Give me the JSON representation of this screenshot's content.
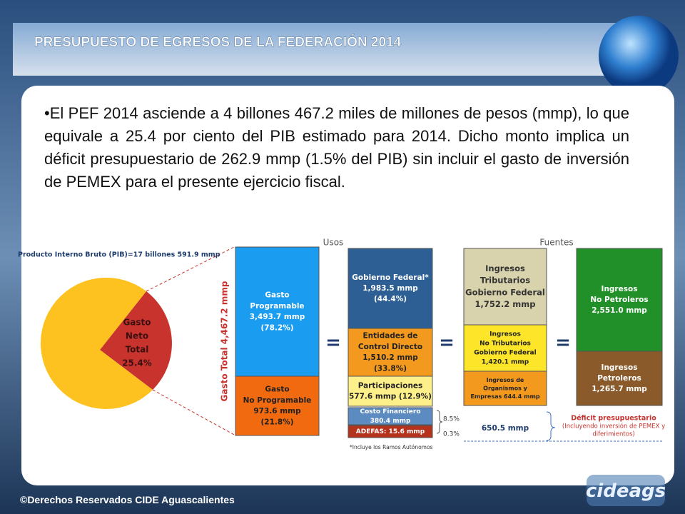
{
  "header": {
    "title": "PRESUPUESTO DE EGRESOS DE LA FEDERACIÓN 2014"
  },
  "body": {
    "paragraph": "•El PEF 2014 asciende a 4 billones 467.2 miles de millones de pesos (mmp), lo que equivale a 25.4 por ciento del PIB estimado para 2014. Dicho monto implica un déficit presupuestario de 262.9 mmp (1.5% del PIB) sin incluir el gasto de inversión de PEMEX para el presente ejercicio fiscal."
  },
  "infographic": {
    "pie_label": "Producto Interno Bruto (PIB)=17 billones 591.9 mmp",
    "pie_slice": [
      "Gasto",
      "Neto",
      "Total",
      "25.4%"
    ],
    "usos": "Usos",
    "fuentes": "Fuentes",
    "total_label": "Gasto Total 4,467.2 mmp",
    "boxes": [
      {
        "lines": [
          "Gasto",
          "Programable",
          "3,493.7 mmp",
          "(78.2%)"
        ]
      },
      {
        "lines": [
          "Gasto",
          "No Programable",
          "973.6 mmp",
          "(21.8%)"
        ]
      },
      {
        "lines": [
          "Gobierno Federal*",
          "1,983.5 mmp",
          "(44.4%)"
        ]
      },
      {
        "lines": [
          "Entidades de",
          "Control Directo",
          "1,510.2 mmp",
          "(33.8%)"
        ]
      },
      {
        "lines": [
          "Participaciones",
          "577.6 mmp (12.9%)"
        ]
      },
      {
        "lines": [
          "Costo Financiero",
          "380.4 mmp"
        ]
      },
      {
        "lines": [
          "ADEFAS: 15.6 mmp"
        ]
      },
      {
        "lines": [
          "Ingresos",
          "Tributarios",
          "Gobierno  Federal",
          "1,752.2 mmp"
        ]
      },
      {
        "lines": [
          "Ingresos",
          "No Tributarios",
          "Gobierno  Federal",
          "1,420.1 mmp"
        ]
      },
      {
        "lines": [
          "Ingresos de",
          "Organismos y",
          "Empresas  644.4 mmp"
        ]
      },
      {
        "lines": [
          "Ingresos",
          "No Petroleros",
          "2,551.0 mmp"
        ]
      },
      {
        "lines": [
          "Ingresos",
          "Petroleros",
          "1,265.7 mmp"
        ]
      }
    ],
    "side_labels": [
      "8.5%",
      "0.3%"
    ],
    "note": "*Incluye los Ramos Autónomos",
    "gap_value": "650.5 mmp",
    "deficit": [
      "Déficit presupuestario",
      "(Incluyendo inversión de PEMEX y",
      "diferimientos)"
    ]
  },
  "footer": {
    "copyright": "©Derechos Reservados CIDE Aguascalientes",
    "logo": "cideags"
  }
}
